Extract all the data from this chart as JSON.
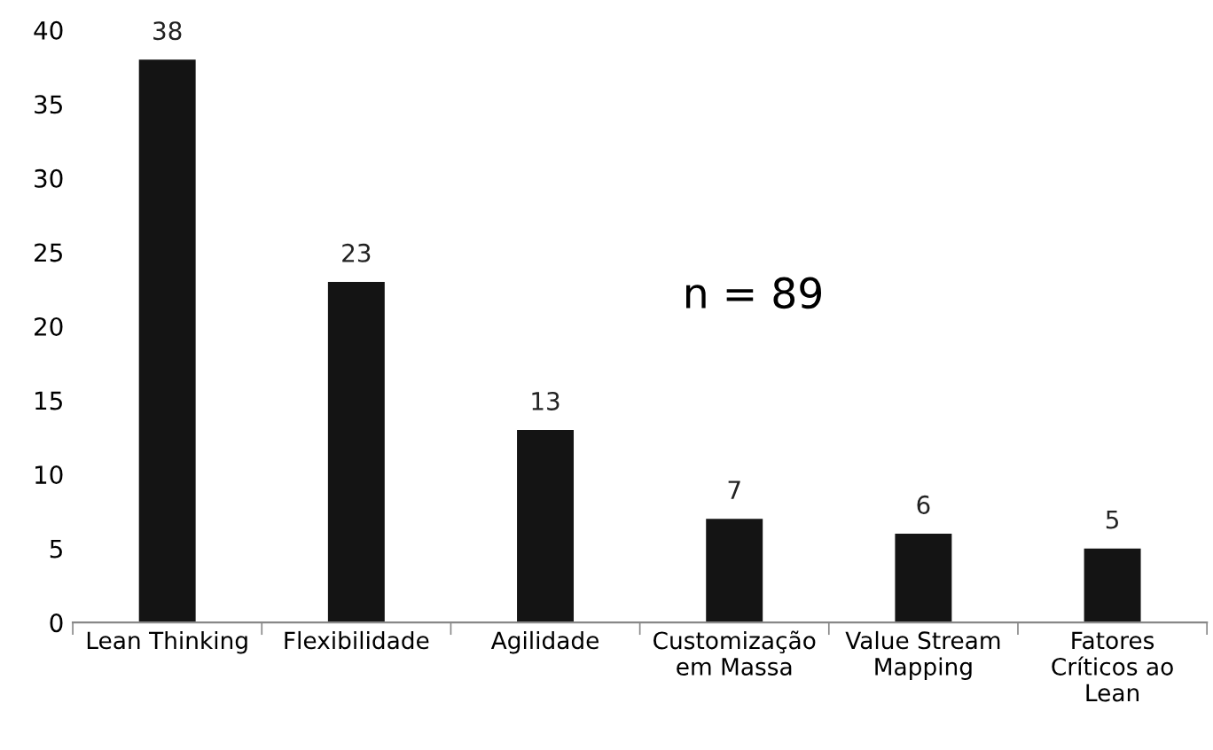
{
  "chart_data": {
    "type": "bar",
    "categories": [
      "Lean Thinking",
      "Flexibilidade",
      "Agilidade",
      "Customização\nem Massa",
      "Value Stream\nMapping",
      "Fatores\nCríticos ao\nLean"
    ],
    "values": [
      38,
      23,
      13,
      7,
      6,
      5
    ],
    "color": "#141414",
    "ylim": [
      0,
      40
    ],
    "yticks": [
      0,
      5,
      10,
      15,
      20,
      25,
      30,
      35,
      40
    ],
    "data_labels": true,
    "grid": false,
    "annotations": [
      "n = 89"
    ]
  }
}
